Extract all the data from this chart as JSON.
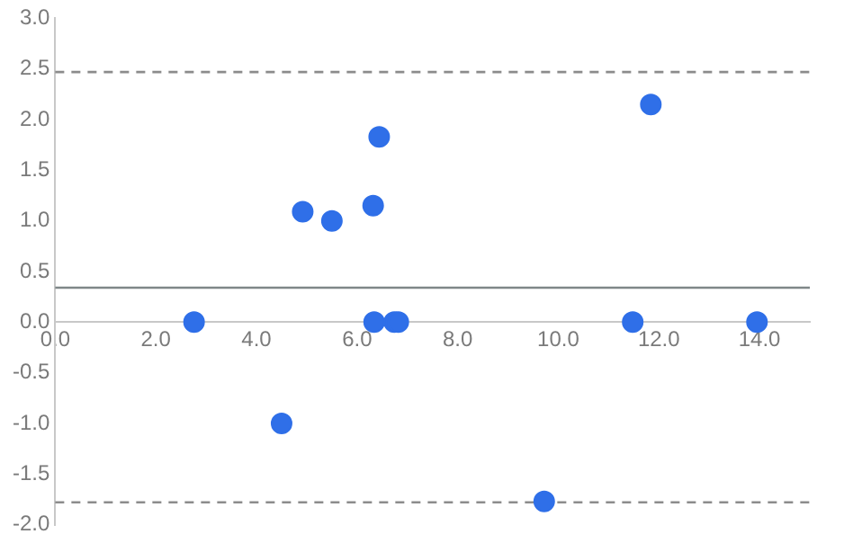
{
  "chart_data": {
    "type": "scatter",
    "series": [
      {
        "color": "#2f6fe8",
        "x": [
          2.76,
          4.5,
          4.92,
          5.5,
          6.32,
          6.44,
          6.34,
          6.74,
          6.82,
          9.72,
          11.48,
          11.84,
          13.95
        ],
        "values": [
          0,
          -1.0,
          1.09,
          1.0,
          1.15,
          1.83,
          0,
          0,
          0,
          -1.77,
          0,
          2.15,
          0
        ]
      }
    ],
    "xlim": [
      0,
      15
    ],
    "ylim": [
      -2,
      3
    ],
    "xticks": [
      {
        "value": 0,
        "label": "0.0"
      },
      {
        "value": 2,
        "label": "2.0"
      },
      {
        "value": 4,
        "label": "4.0"
      },
      {
        "value": 6,
        "label": "6.0"
      },
      {
        "value": 8,
        "label": "8.0"
      },
      {
        "value": 10,
        "label": "10.0"
      },
      {
        "value": 12,
        "label": "12.0"
      },
      {
        "value": 14,
        "label": "14.0"
      }
    ],
    "yticks": [
      {
        "value": -2,
        "label": "-2.0"
      },
      {
        "value": -1.5,
        "label": "-1.5"
      },
      {
        "value": -1,
        "label": "-1.0"
      },
      {
        "value": -0.5,
        "label": "-0.5"
      },
      {
        "value": 0,
        "label": "0.0"
      },
      {
        "value": 0.5,
        "label": "0.5"
      },
      {
        "value": 1,
        "label": "1.0"
      },
      {
        "value": 1.5,
        "label": "1.5"
      },
      {
        "value": 2,
        "label": "2.0"
      },
      {
        "value": 2.5,
        "label": "2.5"
      },
      {
        "value": 3,
        "label": "3.0"
      }
    ],
    "ref_lines": [
      {
        "axis": "y",
        "value": 2.47,
        "color": "#8c8c8c",
        "line_style": "dashed"
      },
      {
        "axis": "y",
        "value": 0.34,
        "color": "#7f8788",
        "line_style": "solid"
      },
      {
        "axis": "y",
        "value": -1.78,
        "color": "#8c8c8c",
        "line_style": "dashed"
      }
    ],
    "grid": false,
    "legend": false,
    "marker": "circle"
  }
}
